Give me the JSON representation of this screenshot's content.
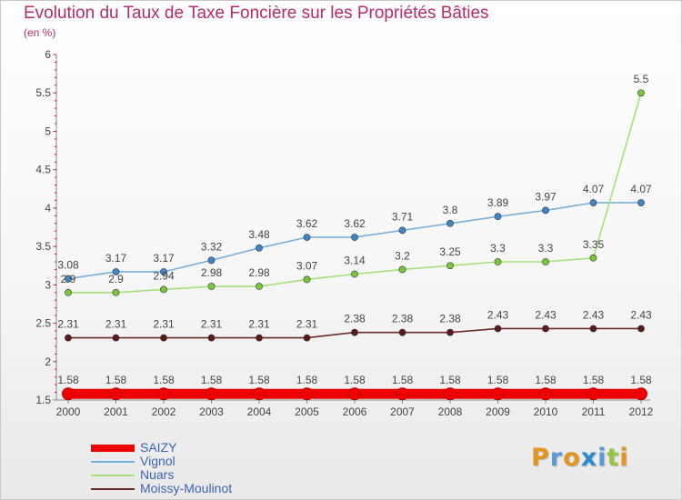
{
  "header": {
    "title": "Evolution du Taux de Taxe Foncière sur les Propriétés Bâties",
    "unit": "(en %)"
  },
  "logo": {
    "text": "Proxiti",
    "colors": [
      "#e3951f",
      "#5b9bd5",
      "#e3951f",
      "#2b8bd1",
      "#5b9bd5",
      "#9ac43f",
      "#e3951f"
    ]
  },
  "chart_data": {
    "type": "line",
    "title": "Evolution du Taux de Taxe Foncière sur les Propriétés Bâties",
    "ylabel": "(en %)",
    "ylim": [
      1.5,
      6
    ],
    "yticks": [
      "1.5",
      "2",
      "2.5",
      "3",
      "3.5",
      "4",
      "4.5",
      "5",
      "5.5",
      "6"
    ],
    "categories": [
      "2000",
      "2001",
      "2002",
      "2003",
      "2004",
      "2005",
      "2006",
      "2007",
      "2008",
      "2009",
      "2010",
      "2011",
      "2012"
    ],
    "series": [
      {
        "name": "SAIZY",
        "color": "#ee0000",
        "marker": "#ee0000",
        "values": [
          1.58,
          1.58,
          1.58,
          1.58,
          1.58,
          1.58,
          1.58,
          1.58,
          1.58,
          1.58,
          1.58,
          1.58,
          1.58
        ],
        "labels": [
          "1.58",
          "1.58",
          "1.58",
          "1.58",
          "1.58",
          "1.58",
          "1.58",
          "1.58",
          "1.58",
          "1.58",
          "1.58",
          "1.58",
          "1.58"
        ]
      },
      {
        "name": "Vignol",
        "color": "#7aafd9",
        "marker": "#3f85c8",
        "values": [
          3.08,
          3.17,
          3.17,
          3.32,
          3.48,
          3.62,
          3.62,
          3.71,
          3.8,
          3.89,
          3.97,
          4.07,
          4.07
        ],
        "labels": [
          "3.08",
          "3.17",
          "3.17",
          "3.32",
          "3.48",
          "3.62",
          "3.62",
          "3.71",
          "3.8",
          "3.89",
          "3.97",
          "4.07",
          "4.07"
        ]
      },
      {
        "name": "Nuars",
        "color": "#a6e07a",
        "marker": "#78c93a",
        "values": [
          2.9,
          2.9,
          2.94,
          2.98,
          2.98,
          3.07,
          3.14,
          3.2,
          3.25,
          3.3,
          3.3,
          3.35,
          5.5
        ],
        "labels": [
          "2.9",
          "2.9",
          "2.94",
          "2.98",
          "2.98",
          "3.07",
          "3.14",
          "3.2",
          "3.25",
          "3.3",
          "3.3",
          "3.35",
          "5.5"
        ]
      },
      {
        "name": "Moissy-Moulinot",
        "color": "#6b2a2a",
        "marker": "#5a1a1a",
        "values": [
          2.31,
          2.31,
          2.31,
          2.31,
          2.31,
          2.31,
          2.38,
          2.38,
          2.38,
          2.43,
          2.43,
          2.43,
          2.43
        ],
        "labels": [
          "2.31",
          "2.31",
          "2.31",
          "2.31",
          "2.31",
          "2.31",
          "2.38",
          "2.38",
          "2.38",
          "2.43",
          "2.43",
          "2.43",
          "2.43"
        ]
      }
    ],
    "grid": false,
    "legend_position": "bottom-left",
    "colors": {
      "axis": "#888888",
      "minor_tick": "#e0003a",
      "label_text": "#444444",
      "legend_text": "#3d63b8"
    }
  }
}
